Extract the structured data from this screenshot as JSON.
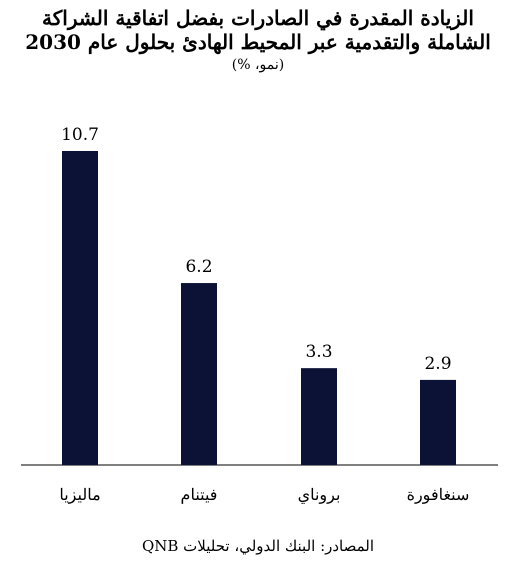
{
  "chart_data": {
    "type": "bar",
    "title": "الزيادة المقدرة في الصادرات بفضل اتفاقية الشراكة الشاملة والتقدمية عبر المحيط الهادئ بحلول عام 2030",
    "subtitle": "(نمو، %)",
    "categories": [
      "ماليزيا",
      "فيتنام",
      "بروناي",
      "سنغافورة"
    ],
    "values": [
      10.7,
      6.2,
      3.3,
      2.9
    ],
    "data_labels": [
      "10.7",
      "6.2",
      "3.3",
      "2.9"
    ],
    "ylim": [
      0,
      12
    ],
    "grid": false,
    "legend": "none",
    "bar_color": "#0c1136",
    "axis_color": "#000000"
  },
  "source": "المصادر: البنك الدولي، تحليلات QNB"
}
